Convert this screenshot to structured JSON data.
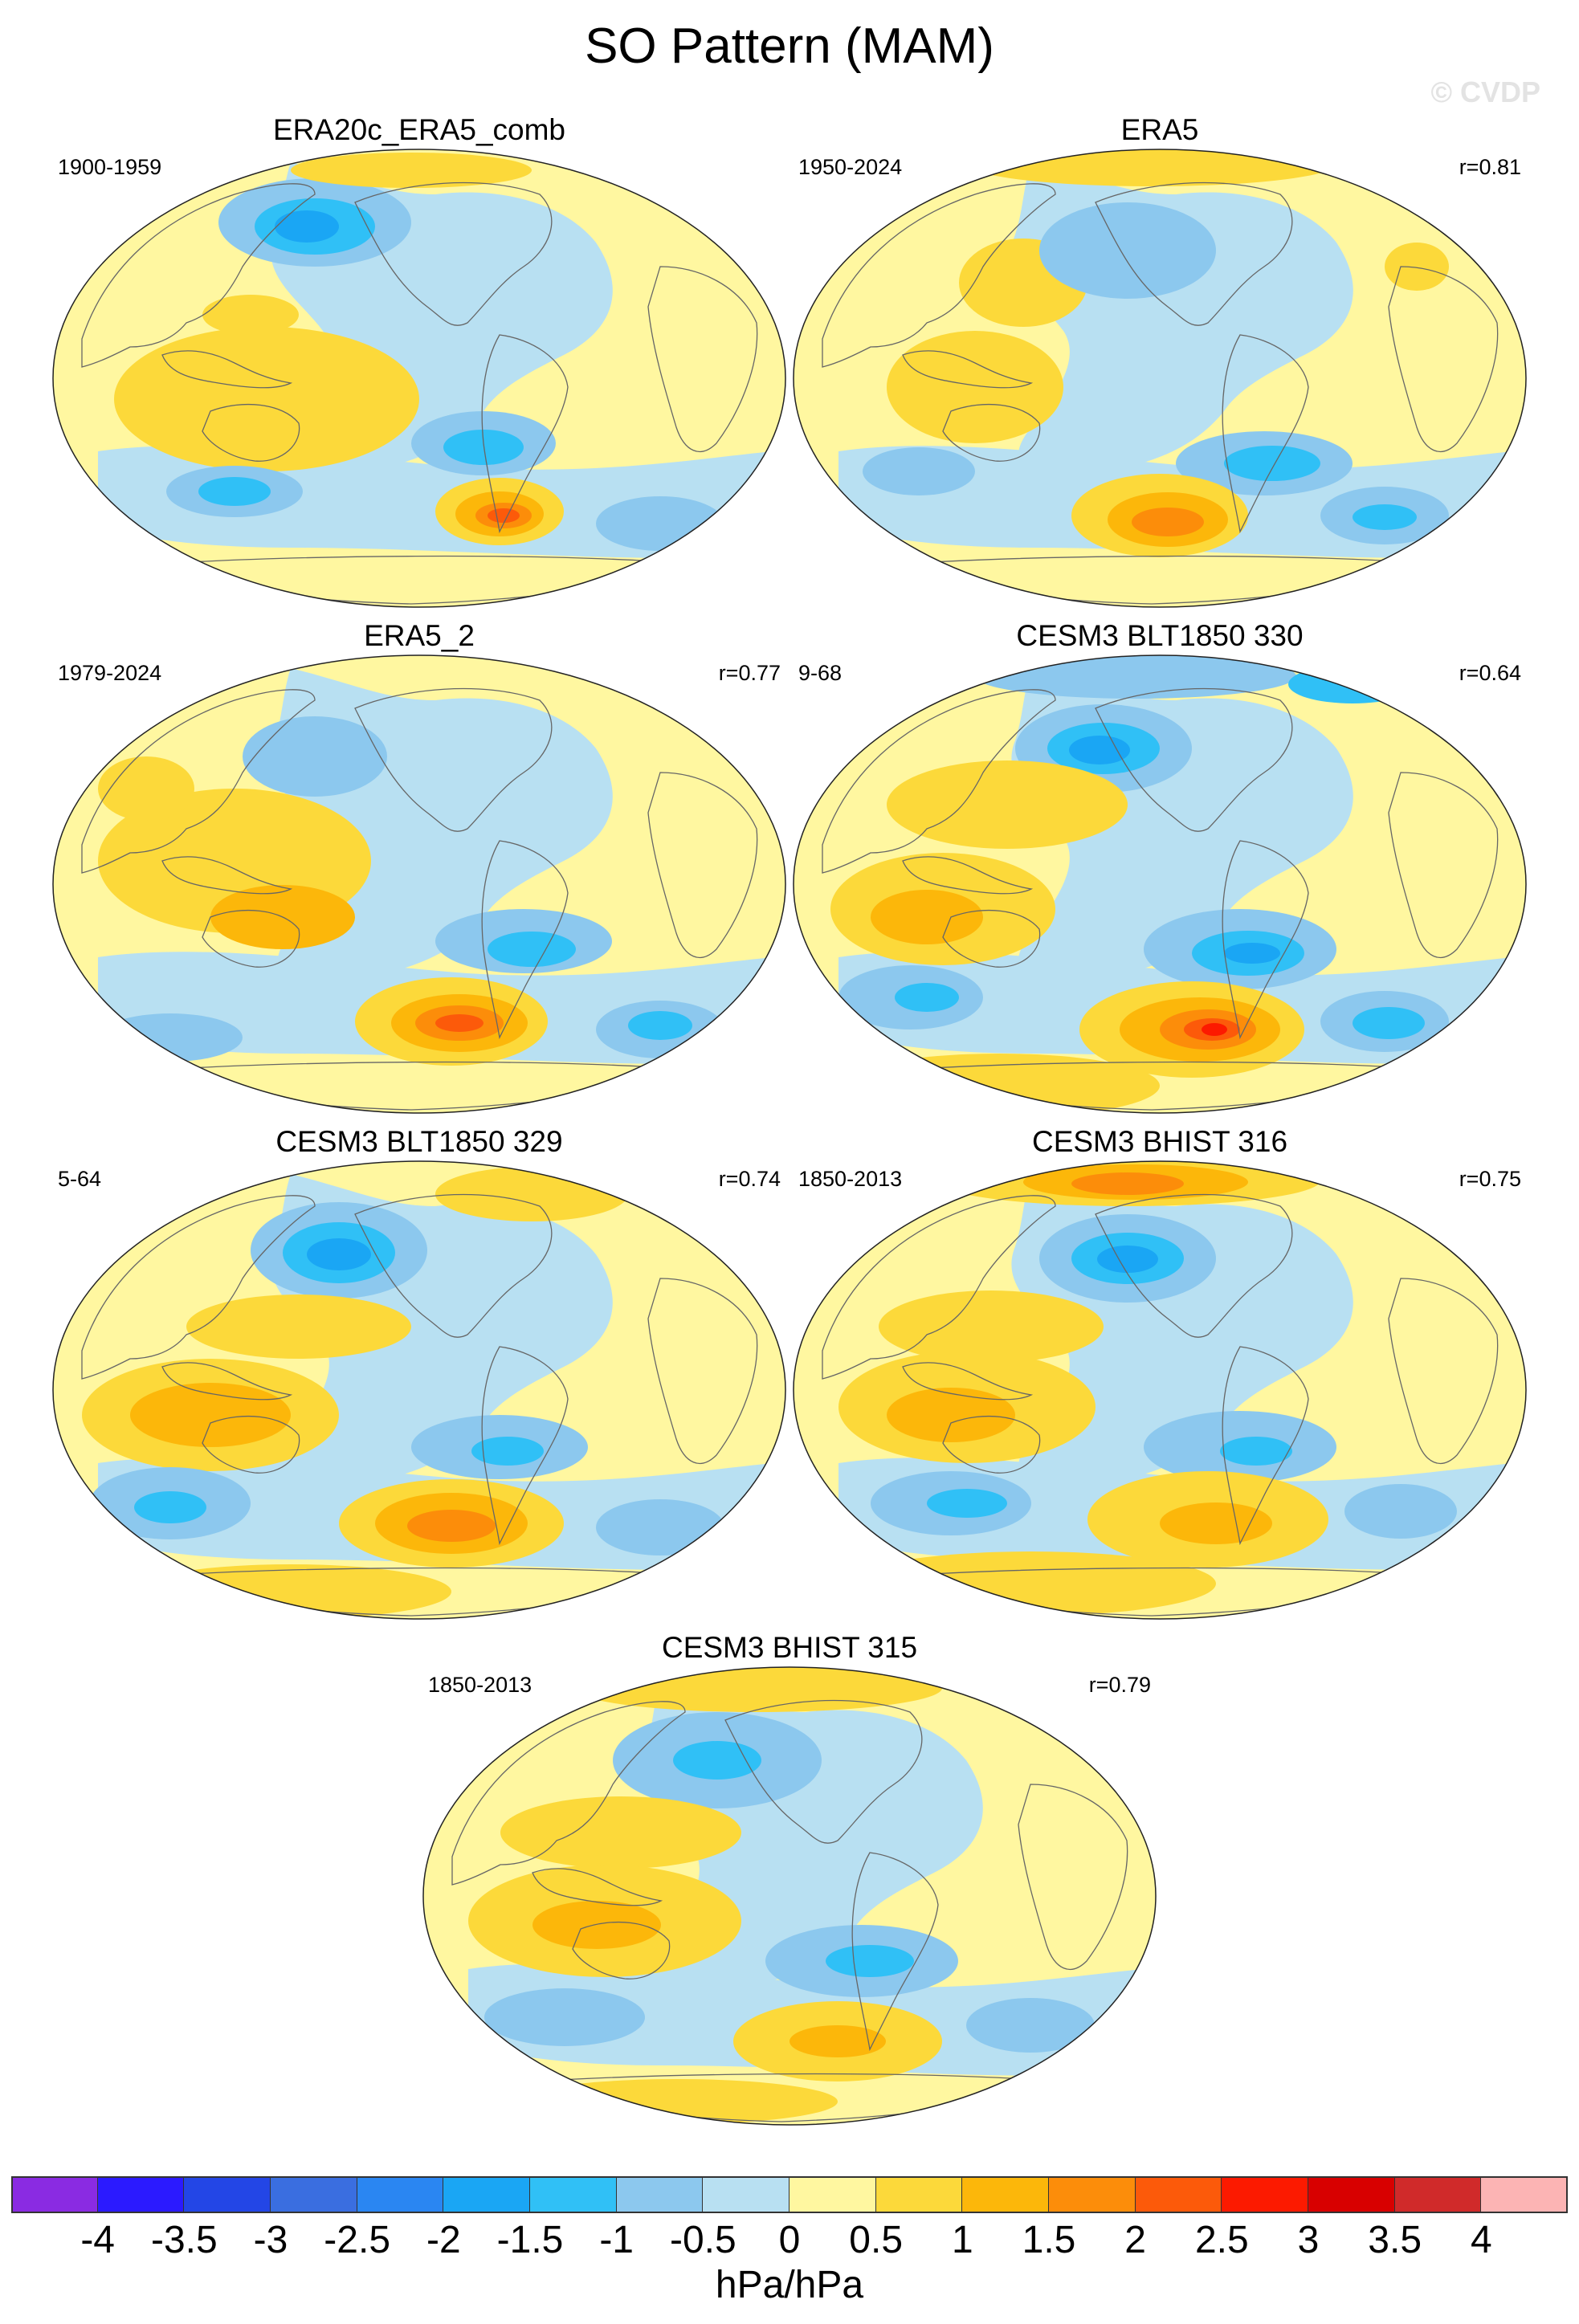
{
  "title": "SO Pattern (MAM)",
  "watermark": "© CVDP",
  "panels": [
    {
      "title": "ERA20c_ERA5_comb",
      "years": "1900-1959",
      "r": ""
    },
    {
      "title": "ERA5",
      "years": "1950-2024",
      "r": "r=0.81"
    },
    {
      "title": "ERA5_2",
      "years": "1979-2024",
      "r": "r=0.77"
    },
    {
      "title": "CESM3 BLT1850 330",
      "years": "9-68",
      "r": "r=0.64"
    },
    {
      "title": "CESM3 BLT1850 329",
      "years": "5-64",
      "r": "r=0.74"
    },
    {
      "title": "CESM3 BHIST 316",
      "years": "1850-2013",
      "r": "r=0.75"
    },
    {
      "title": "CESM3 BHIST 315",
      "years": "1850-2013",
      "r": "r=0.79"
    }
  ],
  "colorbar": {
    "units": "hPa/hPa",
    "labels": [
      "-4",
      "-3.5",
      "-3",
      "-2.5",
      "-2",
      "-1.5",
      "-1",
      "-0.5",
      "0",
      "0.5",
      "1",
      "1.5",
      "2",
      "2.5",
      "3",
      "3.5",
      "4"
    ],
    "colors": [
      "#8a2be2",
      "#2b1aff",
      "#2346e6",
      "#3a6ee0",
      "#2a86f2",
      "#1aa6f4",
      "#30c0f6",
      "#8cc8ee",
      "#b8e0f2",
      "#fff7a0",
      "#fcd93a",
      "#fcb70a",
      "#fc8d0a",
      "#fc5a0a",
      "#fc1a00",
      "#d80000",
      "#d02a2a",
      "#fcb4b4"
    ]
  },
  "features": {
    "ocean_color": "#b8e0f2",
    "land_color": "#fff7a0",
    "border_color": "#666666"
  }
}
